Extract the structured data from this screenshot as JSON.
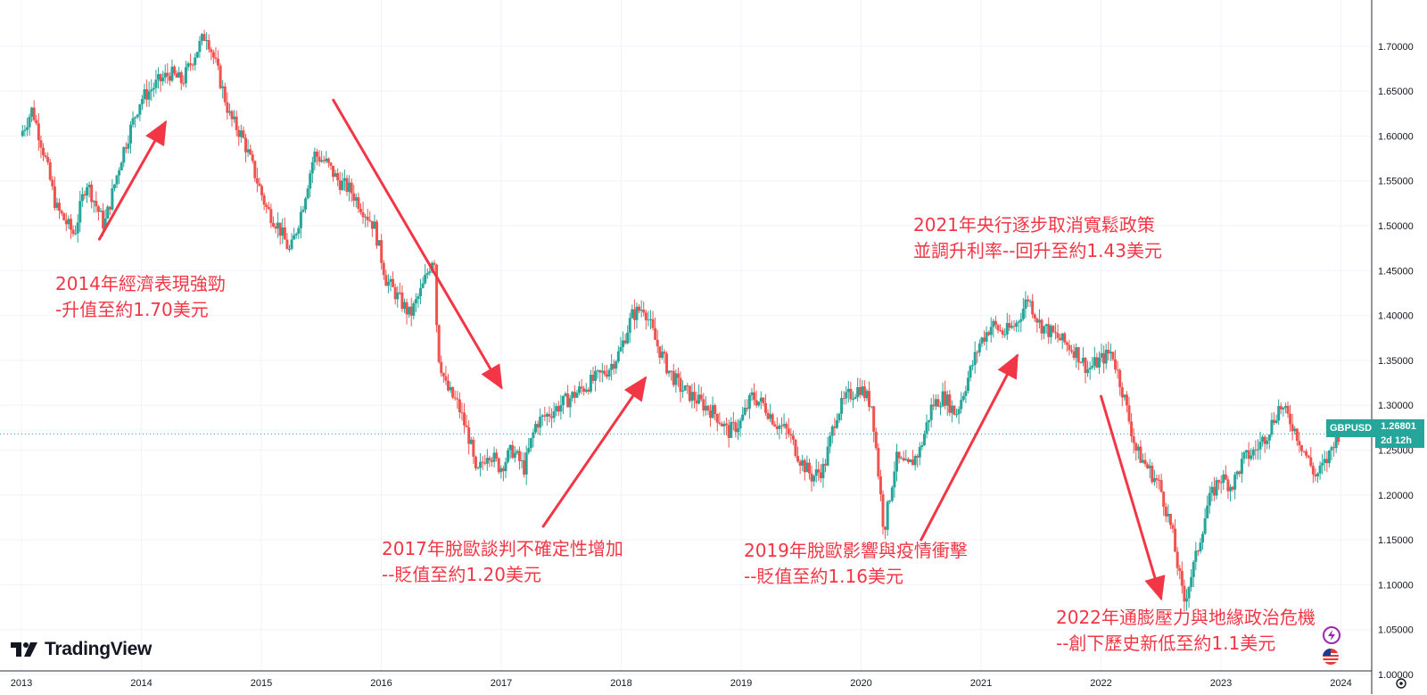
{
  "chart_data": {
    "type": "candlestick",
    "symbol": "GBPUSD",
    "last_price": "1.26801",
    "countdown": "2d 12h",
    "x_ticks": [
      "2013",
      "2014",
      "2015",
      "2016",
      "2017",
      "2018",
      "2019",
      "2020",
      "2021",
      "2022",
      "2023",
      "2024"
    ],
    "y_ticks": [
      "1.00000",
      "1.05000",
      "1.10000",
      "1.15000",
      "1.20000",
      "1.25000",
      "1.30000",
      "1.35000",
      "1.40000",
      "1.45000",
      "1.50000",
      "1.55000",
      "1.60000",
      "1.65000",
      "1.70000"
    ],
    "y_range": [
      1.0,
      1.74
    ],
    "x_range": [
      2013.0,
      2024.2
    ],
    "grid": true,
    "price_path": [
      [
        2013.0,
        1.6
      ],
      [
        2013.1,
        1.63
      ],
      [
        2013.2,
        1.58
      ],
      [
        2013.3,
        1.52
      ],
      [
        2013.45,
        1.49
      ],
      [
        2013.55,
        1.55
      ],
      [
        2013.7,
        1.5
      ],
      [
        2013.85,
        1.58
      ],
      [
        2014.0,
        1.64
      ],
      [
        2014.15,
        1.66
      ],
      [
        2014.25,
        1.67
      ],
      [
        2014.35,
        1.66
      ],
      [
        2014.45,
        1.69
      ],
      [
        2014.55,
        1.715
      ],
      [
        2014.65,
        1.67
      ],
      [
        2014.75,
        1.62
      ],
      [
        2014.85,
        1.6
      ],
      [
        2014.95,
        1.56
      ],
      [
        2015.05,
        1.52
      ],
      [
        2015.15,
        1.5
      ],
      [
        2015.25,
        1.47
      ],
      [
        2015.35,
        1.52
      ],
      [
        2015.45,
        1.58
      ],
      [
        2015.55,
        1.57
      ],
      [
        2015.65,
        1.55
      ],
      [
        2015.75,
        1.54
      ],
      [
        2015.85,
        1.52
      ],
      [
        2015.95,
        1.5
      ],
      [
        2016.05,
        1.44
      ],
      [
        2016.15,
        1.42
      ],
      [
        2016.25,
        1.4
      ],
      [
        2016.35,
        1.43
      ],
      [
        2016.45,
        1.47
      ],
      [
        2016.48,
        1.36
      ],
      [
        2016.55,
        1.32
      ],
      [
        2016.65,
        1.3
      ],
      [
        2016.75,
        1.26
      ],
      [
        2016.8,
        1.22
      ],
      [
        2016.9,
        1.25
      ],
      [
        2017.0,
        1.23
      ],
      [
        2017.1,
        1.25
      ],
      [
        2017.2,
        1.23
      ],
      [
        2017.3,
        1.28
      ],
      [
        2017.4,
        1.29
      ],
      [
        2017.5,
        1.3
      ],
      [
        2017.6,
        1.31
      ],
      [
        2017.7,
        1.32
      ],
      [
        2017.8,
        1.33
      ],
      [
        2017.9,
        1.34
      ],
      [
        2018.0,
        1.36
      ],
      [
        2018.1,
        1.4
      ],
      [
        2018.2,
        1.41
      ],
      [
        2018.3,
        1.37
      ],
      [
        2018.4,
        1.34
      ],
      [
        2018.5,
        1.32
      ],
      [
        2018.6,
        1.31
      ],
      [
        2018.7,
        1.3
      ],
      [
        2018.8,
        1.29
      ],
      [
        2018.9,
        1.27
      ],
      [
        2019.0,
        1.28
      ],
      [
        2019.1,
        1.31
      ],
      [
        2019.2,
        1.3
      ],
      [
        2019.3,
        1.28
      ],
      [
        2019.4,
        1.27
      ],
      [
        2019.5,
        1.24
      ],
      [
        2019.6,
        1.22
      ],
      [
        2019.7,
        1.23
      ],
      [
        2019.8,
        1.29
      ],
      [
        2019.9,
        1.31
      ],
      [
        2020.0,
        1.32
      ],
      [
        2020.1,
        1.3
      ],
      [
        2020.2,
        1.16
      ],
      [
        2020.3,
        1.24
      ],
      [
        2020.4,
        1.23
      ],
      [
        2020.5,
        1.25
      ],
      [
        2020.6,
        1.3
      ],
      [
        2020.7,
        1.31
      ],
      [
        2020.8,
        1.29
      ],
      [
        2020.9,
        1.33
      ],
      [
        2021.0,
        1.37
      ],
      [
        2021.1,
        1.39
      ],
      [
        2021.2,
        1.38
      ],
      [
        2021.3,
        1.39
      ],
      [
        2021.4,
        1.42
      ],
      [
        2021.5,
        1.39
      ],
      [
        2021.6,
        1.38
      ],
      [
        2021.7,
        1.37
      ],
      [
        2021.8,
        1.36
      ],
      [
        2021.9,
        1.34
      ],
      [
        2022.0,
        1.35
      ],
      [
        2022.1,
        1.36
      ],
      [
        2022.2,
        1.31
      ],
      [
        2022.3,
        1.25
      ],
      [
        2022.4,
        1.23
      ],
      [
        2022.5,
        1.21
      ],
      [
        2022.6,
        1.16
      ],
      [
        2022.7,
        1.08
      ],
      [
        2022.8,
        1.13
      ],
      [
        2022.9,
        1.19
      ],
      [
        2023.0,
        1.22
      ],
      [
        2023.1,
        1.21
      ],
      [
        2023.2,
        1.24
      ],
      [
        2023.3,
        1.25
      ],
      [
        2023.4,
        1.27
      ],
      [
        2023.5,
        1.3
      ],
      [
        2023.6,
        1.28
      ],
      [
        2023.7,
        1.25
      ],
      [
        2023.8,
        1.22
      ],
      [
        2023.9,
        1.24
      ],
      [
        2023.97,
        1.268
      ]
    ],
    "arrows": [
      {
        "from": [
          2013.65,
          1.485
        ],
        "to": [
          2014.2,
          1.615
        ]
      },
      {
        "from": [
          2015.6,
          1.64
        ],
        "to": [
          2017.0,
          1.32
        ]
      },
      {
        "from": [
          2017.35,
          1.165
        ],
        "to": [
          2018.2,
          1.33
        ]
      },
      {
        "from": [
          2020.5,
          1.15
        ],
        "to": [
          2021.3,
          1.355
        ]
      },
      {
        "from": [
          2022.0,
          1.31
        ],
        "to": [
          2022.5,
          1.085
        ]
      }
    ]
  },
  "annotations": [
    {
      "line1": "2014年經濟表現強勁",
      "line2": "-升值至約1.70美元"
    },
    {
      "line1": "2017年脫歐談判不確定性增加",
      "line2": "--貶值至約1.20美元"
    },
    {
      "line1": "2019年脫歐影響與疫情衝擊",
      "line2": "--貶值至約1.16美元"
    },
    {
      "line1": "2021年央行逐步取消寬鬆政策",
      "line2": "並調升利率--回升至約1.43美元"
    },
    {
      "line1": "2022年通膨壓力與地緣政治危機",
      "line2": "--創下歷史新低至約1.1美元"
    }
  ],
  "brand": {
    "name": "TradingView"
  },
  "colors": {
    "up": "#26a69a",
    "down": "#ef5350",
    "annotation": "#f23645",
    "grid": "#f0f3fa"
  }
}
